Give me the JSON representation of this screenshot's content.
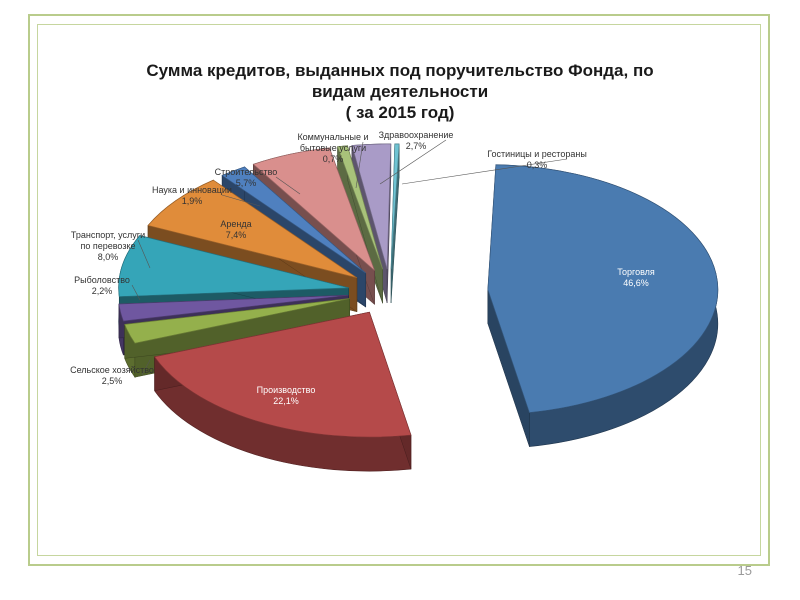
{
  "slide": {
    "page_number": "15"
  },
  "chart_data": {
    "type": "pie",
    "title_lines": [
      "Сумма кредитов, выданных под поручительство Фонда, по",
      "видам деятельности",
      "( за 2015 год)"
    ],
    "slices": [
      {
        "label_lines": [
          "Торговля"
        ],
        "value_text": "46,6%",
        "value": 46.6,
        "color": "#4a7bb0"
      },
      {
        "label_lines": [
          "Производство"
        ],
        "value_text": "22,1%",
        "value": 22.1,
        "color": "#b54a4a"
      },
      {
        "label_lines": [
          "Сельское хозяйство"
        ],
        "value_text": "2,5%",
        "value": 2.5,
        "color": "#94b04c"
      },
      {
        "label_lines": [
          "Рыболовство"
        ],
        "value_text": "2,2%",
        "value": 2.2,
        "color": "#6f57a0"
      },
      {
        "label_lines": [
          "Транспорт, услуги",
          "по перевозке"
        ],
        "value_text": "8,0%",
        "value": 8.0,
        "color": "#35a5b8"
      },
      {
        "label_lines": [
          "Аренда"
        ],
        "value_text": "7,4%",
        "value": 7.4,
        "color": "#e08c3a"
      },
      {
        "label_lines": [
          "Наука и инновации"
        ],
        "value_text": "1,9%",
        "value": 1.9,
        "color": "#4f80bf"
      },
      {
        "label_lines": [
          "Строительство"
        ],
        "value_text": "5,7%",
        "value": 5.7,
        "color": "#d98f8d"
      },
      {
        "label_lines": [
          "Коммунальные и",
          "бытовые услуги"
        ],
        "value_text": "0,7%",
        "value": 0.7,
        "color": "#a8c27a"
      },
      {
        "label_lines": [
          "Здравоохранение"
        ],
        "value_text": "2,7%",
        "value": 2.7,
        "color": "#a99bc7"
      },
      {
        "label_lines": [
          "Гостиницы и рестораны"
        ],
        "value_text": "0,3%",
        "value": 0.3,
        "color": "#6fc3d3"
      }
    ]
  }
}
